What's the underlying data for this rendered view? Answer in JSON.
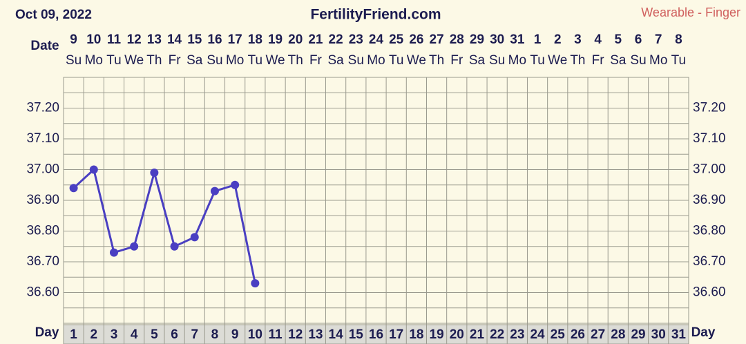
{
  "chart_data": {
    "type": "line",
    "date": "Oct 09, 2022",
    "title": "FertilityFriend.com",
    "subtitle": "Wearable - Finger",
    "date_row_label": "Date",
    "dates": [
      "9",
      "10",
      "11",
      "12",
      "13",
      "14",
      "15",
      "16",
      "17",
      "18",
      "19",
      "20",
      "21",
      "22",
      "23",
      "24",
      "25",
      "26",
      "27",
      "28",
      "29",
      "30",
      "31",
      "1",
      "2",
      "3",
      "4",
      "5",
      "6",
      "7",
      "8"
    ],
    "weekdays": [
      "Su",
      "Mo",
      "Tu",
      "We",
      "Th",
      "Fr",
      "Sa",
      "Su",
      "Mo",
      "Tu",
      "We",
      "Th",
      "Fr",
      "Sa",
      "Su",
      "Mo",
      "Tu",
      "We",
      "Th",
      "Fr",
      "Sa",
      "Su",
      "Mo",
      "Tu",
      "We",
      "Th",
      "Fr",
      "Sa",
      "Su",
      "Mo",
      "Tu"
    ],
    "day_row_label": "Day",
    "categories": [
      "1",
      "2",
      "3",
      "4",
      "5",
      "6",
      "7",
      "8",
      "9",
      "10",
      "11",
      "12",
      "13",
      "14",
      "15",
      "16",
      "17",
      "18",
      "19",
      "20",
      "21",
      "22",
      "23",
      "24",
      "25",
      "26",
      "27",
      "28",
      "29",
      "30",
      "31"
    ],
    "values": [
      36.94,
      37.0,
      36.73,
      36.75,
      36.99,
      36.75,
      36.78,
      36.93,
      36.95,
      36.63,
      null,
      null,
      null,
      null,
      null,
      null,
      null,
      null,
      null,
      null,
      null,
      null,
      null,
      null,
      null,
      null,
      null,
      null,
      null,
      null,
      null
    ],
    "color": "#4a3fc2",
    "ylim": [
      36.5,
      37.3
    ],
    "yticks": [
      {
        "value": 36.6,
        "label": "36.60"
      },
      {
        "value": 36.7,
        "label": "36.70"
      },
      {
        "value": 36.8,
        "label": "36.80"
      },
      {
        "value": 36.9,
        "label": "36.90"
      },
      {
        "value": 37.0,
        "label": "37.00"
      },
      {
        "value": 37.1,
        "label": "37.10"
      },
      {
        "value": 37.2,
        "label": "37.20"
      }
    ],
    "minor_yticks": [
      36.55,
      36.65,
      36.75,
      36.85,
      36.95,
      37.05,
      37.15,
      37.25
    ],
    "grid": true
  }
}
